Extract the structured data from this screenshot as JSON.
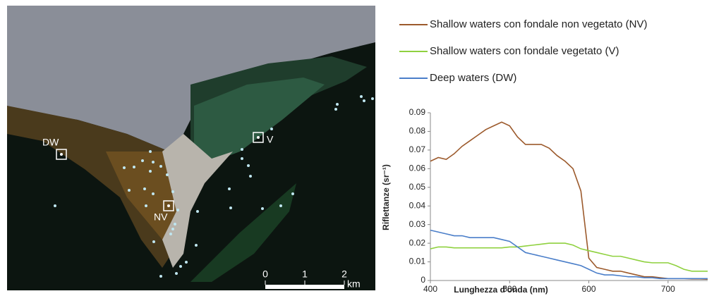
{
  "image": {
    "labels": [
      "DW",
      "V",
      "NV"
    ],
    "scale": {
      "ticks": [
        "0",
        "1",
        "2"
      ],
      "unit": "km"
    }
  },
  "chart_data": {
    "type": "line",
    "x_label": "Lunghezza d'onda (nm)",
    "y_label": "Riflettanze (sr⁻¹)",
    "x": [
      400,
      410,
      420,
      430,
      440,
      450,
      460,
      470,
      480,
      490,
      500,
      510,
      520,
      530,
      540,
      550,
      560,
      570,
      580,
      590,
      600,
      610,
      620,
      630,
      640,
      650,
      660,
      670,
      680,
      690,
      700,
      710,
      720,
      730,
      740,
      750
    ],
    "series": [
      {
        "name": "Shallow waters con fondale non vegetato (NV)",
        "color": "#9c5a2c",
        "values": [
          0.064,
          0.066,
          0.065,
          0.068,
          0.072,
          0.075,
          0.078,
          0.081,
          0.083,
          0.085,
          0.083,
          0.077,
          0.073,
          0.073,
          0.073,
          0.071,
          0.067,
          0.064,
          0.06,
          0.048,
          0.012,
          0.007,
          0.006,
          0.005,
          0.005,
          0.004,
          0.003,
          0.002,
          0.002,
          0.0015,
          0.001,
          0.001,
          0.001,
          0.0008,
          0.0008,
          0.0007
        ]
      },
      {
        "name": "Shallow waters con fondale vegetato (V)",
        "color": "#8fd13f",
        "values": [
          0.017,
          0.018,
          0.018,
          0.0175,
          0.0175,
          0.0175,
          0.0175,
          0.0175,
          0.0175,
          0.0175,
          0.018,
          0.018,
          0.0185,
          0.019,
          0.0195,
          0.02,
          0.02,
          0.02,
          0.019,
          0.017,
          0.016,
          0.015,
          0.014,
          0.013,
          0.013,
          0.012,
          0.011,
          0.01,
          0.0095,
          0.0095,
          0.0095,
          0.008,
          0.006,
          0.005,
          0.005,
          0.005
        ]
      },
      {
        "name": "Deep waters (DW)",
        "color": "#4a7ec9",
        "values": [
          0.027,
          0.026,
          0.025,
          0.024,
          0.024,
          0.023,
          0.023,
          0.023,
          0.023,
          0.022,
          0.021,
          0.018,
          0.015,
          0.014,
          0.013,
          0.012,
          0.011,
          0.01,
          0.009,
          0.008,
          0.006,
          0.004,
          0.003,
          0.003,
          0.0025,
          0.002,
          0.002,
          0.0015,
          0.0015,
          0.001,
          0.001,
          0.001,
          0.001,
          0.001,
          0.001,
          0.001
        ]
      }
    ],
    "xlim": [
      400,
      750
    ],
    "xticks": [
      400,
      500,
      600,
      700
    ],
    "ylim": [
      0,
      0.09
    ],
    "yticks": [
      0,
      0.01,
      0.02,
      0.03,
      0.04,
      0.05,
      0.06,
      0.07,
      0.08,
      0.09
    ]
  }
}
